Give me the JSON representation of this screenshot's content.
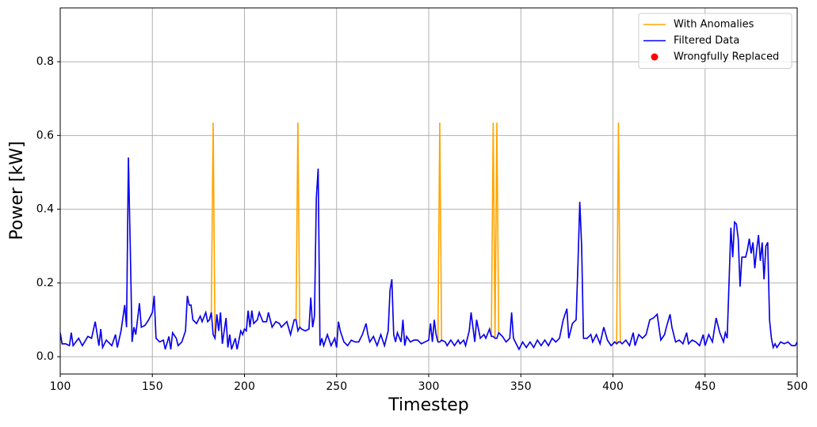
{
  "chart_data": {
    "type": "line",
    "xlabel": "Timestep",
    "ylabel": "Power [kW]",
    "xlim": [
      100,
      500
    ],
    "ylim": [
      -0.047,
      0.946
    ],
    "xticks": [
      100,
      150,
      200,
      250,
      300,
      350,
      400,
      450,
      500
    ],
    "yticks": [
      {
        "value": 0,
        "label": "0.0"
      },
      0.2,
      0.4,
      0.6,
      0.8
    ],
    "grid": true,
    "legend": "upper right",
    "x": [
      100,
      101,
      103,
      105,
      106,
      107,
      110,
      112,
      115,
      117,
      119,
      121,
      122,
      123,
      125,
      128,
      130,
      131,
      133,
      135,
      136,
      137,
      138,
      139,
      140,
      141,
      143,
      144,
      146,
      148,
      150,
      151,
      152,
      154,
      156,
      157,
      159,
      160,
      161,
      163,
      164,
      166,
      168,
      169,
      170,
      171,
      172,
      174,
      176,
      177,
      179,
      180,
      181,
      182,
      183,
      184,
      185,
      186,
      187,
      188,
      190,
      191,
      192,
      193,
      195,
      196,
      198,
      199,
      200,
      201,
      202,
      203,
      204,
      205,
      207,
      208,
      210,
      212,
      213,
      215,
      217,
      219,
      220,
      222,
      223,
      225,
      227,
      228,
      229,
      230,
      231,
      233,
      235,
      236,
      237,
      238,
      239,
      240,
      241,
      242,
      243,
      245,
      247,
      249,
      250,
      251,
      252,
      254,
      256,
      258,
      260,
      262,
      264,
      266,
      267,
      268,
      270,
      272,
      274,
      276,
      278,
      279,
      280,
      281,
      282,
      283,
      285,
      286,
      287,
      288,
      290,
      292,
      294,
      296,
      298,
      300,
      301,
      302,
      303,
      304,
      305,
      306,
      307,
      309,
      310,
      312,
      314,
      316,
      317,
      319,
      320,
      322,
      323,
      324,
      325,
      326,
      328,
      330,
      331,
      333,
      334,
      335,
      336,
      337,
      338,
      340,
      342,
      344,
      345,
      346,
      348,
      349,
      351,
      353,
      355,
      357,
      359,
      361,
      363,
      365,
      367,
      369,
      371,
      373,
      375,
      376,
      378,
      380,
      381,
      382,
      383,
      384,
      386,
      388,
      389,
      391,
      393,
      395,
      397,
      399,
      401,
      402,
      403,
      404,
      405,
      407,
      409,
      411,
      412,
      414,
      416,
      418,
      420,
      422,
      424,
      426,
      428,
      429,
      431,
      432,
      434,
      436,
      438,
      440,
      441,
      443,
      445,
      447,
      449,
      450,
      452,
      454,
      456,
      458,
      460,
      461,
      462,
      463,
      464,
      465,
      466,
      467,
      468,
      469,
      470,
      472,
      473,
      474,
      475,
      476,
      477,
      478,
      479,
      480,
      481,
      482,
      483,
      484,
      485,
      486,
      487,
      488,
      489,
      491,
      493,
      495,
      497,
      499,
      500
    ],
    "series": [
      {
        "name": "With Anomalies",
        "color": "#ffa500",
        "values": [
          0.065,
          0.035,
          0.035,
          0.03,
          0.065,
          0.03,
          0.05,
          0.03,
          0.055,
          0.05,
          0.095,
          0.03,
          0.075,
          0.025,
          0.045,
          0.03,
          0.06,
          0.025,
          0.07,
          0.14,
          0.08,
          0.54,
          0.3,
          0.04,
          0.08,
          0.06,
          0.145,
          0.08,
          0.085,
          0.1,
          0.12,
          0.165,
          0.05,
          0.04,
          0.045,
          0.02,
          0.055,
          0.02,
          0.065,
          0.05,
          0.03,
          0.04,
          0.07,
          0.165,
          0.14,
          0.14,
          0.1,
          0.09,
          0.11,
          0.095,
          0.12,
          0.095,
          0.1,
          0.12,
          0.635,
          0.05,
          0.115,
          0.07,
          0.12,
          0.035,
          0.105,
          0.025,
          0.06,
          0.02,
          0.05,
          0.02,
          0.07,
          0.06,
          0.075,
          0.07,
          0.125,
          0.08,
          0.125,
          0.09,
          0.1,
          0.12,
          0.095,
          0.095,
          0.12,
          0.08,
          0.095,
          0.09,
          0.08,
          0.09,
          0.095,
          0.06,
          0.1,
          0.1,
          0.635,
          0.08,
          0.075,
          0.07,
          0.075,
          0.16,
          0.08,
          0.11,
          0.43,
          0.51,
          0.03,
          0.05,
          0.03,
          0.06,
          0.03,
          0.05,
          0.025,
          0.095,
          0.07,
          0.04,
          0.03,
          0.045,
          0.04,
          0.04,
          0.06,
          0.09,
          0.06,
          0.04,
          0.055,
          0.03,
          0.06,
          0.03,
          0.07,
          0.18,
          0.21,
          0.06,
          0.04,
          0.065,
          0.04,
          0.1,
          0.03,
          0.055,
          0.04,
          0.045,
          0.045,
          0.035,
          0.04,
          0.045,
          0.09,
          0.04,
          0.1,
          0.06,
          0.04,
          0.635,
          0.045,
          0.04,
          0.03,
          0.045,
          0.03,
          0.045,
          0.035,
          0.045,
          0.03,
          0.07,
          0.12,
          0.08,
          0.04,
          0.1,
          0.05,
          0.06,
          0.05,
          0.075,
          0.055,
          0.635,
          0.05,
          0.635,
          0.065,
          0.055,
          0.04,
          0.05,
          0.12,
          0.05,
          0.03,
          0.02,
          0.04,
          0.025,
          0.04,
          0.025,
          0.045,
          0.03,
          0.045,
          0.03,
          0.05,
          0.04,
          0.05,
          0.1,
          0.13,
          0.05,
          0.09,
          0.1,
          0.25,
          0.42,
          0.3,
          0.05,
          0.05,
          0.06,
          0.04,
          0.06,
          0.035,
          0.08,
          0.045,
          0.03,
          0.04,
          0.035,
          0.635,
          0.04,
          0.035,
          0.045,
          0.03,
          0.065,
          0.03,
          0.06,
          0.05,
          0.06,
          0.1,
          0.105,
          0.115,
          0.045,
          0.06,
          0.08,
          0.115,
          0.08,
          0.04,
          0.045,
          0.035,
          0.065,
          0.035,
          0.045,
          0.04,
          0.03,
          0.06,
          0.03,
          0.06,
          0.04,
          0.105,
          0.065,
          0.04,
          0.065,
          0.05,
          0.2,
          0.35,
          0.27,
          0.365,
          0.36,
          0.32,
          0.19,
          0.27,
          0.27,
          0.29,
          0.32,
          0.28,
          0.31,
          0.24,
          0.29,
          0.33,
          0.26,
          0.31,
          0.21,
          0.3,
          0.31,
          0.1,
          0.05,
          0.025,
          0.035,
          0.025,
          0.04,
          0.035,
          0.04,
          0.03,
          0.03,
          0.04
        ]
      },
      {
        "name": "Filtered Data",
        "color": "#0000ff",
        "values": [
          0.065,
          0.035,
          0.035,
          0.03,
          0.065,
          0.03,
          0.05,
          0.03,
          0.055,
          0.05,
          0.095,
          0.03,
          0.075,
          0.025,
          0.045,
          0.03,
          0.06,
          0.025,
          0.07,
          0.14,
          0.08,
          0.54,
          0.3,
          0.04,
          0.08,
          0.06,
          0.145,
          0.08,
          0.085,
          0.1,
          0.12,
          0.165,
          0.05,
          0.04,
          0.045,
          0.02,
          0.055,
          0.02,
          0.065,
          0.05,
          0.03,
          0.04,
          0.07,
          0.165,
          0.14,
          0.14,
          0.1,
          0.09,
          0.11,
          0.095,
          0.12,
          0.095,
          0.1,
          0.12,
          0.06,
          0.05,
          0.115,
          0.07,
          0.12,
          0.035,
          0.105,
          0.025,
          0.06,
          0.02,
          0.05,
          0.02,
          0.07,
          0.06,
          0.075,
          0.07,
          0.125,
          0.08,
          0.125,
          0.09,
          0.1,
          0.12,
          0.095,
          0.095,
          0.12,
          0.08,
          0.095,
          0.09,
          0.08,
          0.09,
          0.095,
          0.06,
          0.1,
          0.1,
          0.07,
          0.08,
          0.075,
          0.07,
          0.075,
          0.16,
          0.08,
          0.11,
          0.43,
          0.51,
          0.03,
          0.05,
          0.03,
          0.06,
          0.03,
          0.05,
          0.025,
          0.095,
          0.07,
          0.04,
          0.03,
          0.045,
          0.04,
          0.04,
          0.06,
          0.09,
          0.06,
          0.04,
          0.055,
          0.03,
          0.06,
          0.03,
          0.07,
          0.18,
          0.21,
          0.06,
          0.04,
          0.065,
          0.04,
          0.1,
          0.03,
          0.055,
          0.04,
          0.045,
          0.045,
          0.035,
          0.04,
          0.045,
          0.09,
          0.04,
          0.1,
          0.06,
          0.04,
          0.04,
          0.045,
          0.04,
          0.03,
          0.045,
          0.03,
          0.045,
          0.035,
          0.045,
          0.03,
          0.07,
          0.12,
          0.08,
          0.04,
          0.1,
          0.05,
          0.06,
          0.05,
          0.075,
          0.055,
          0.055,
          0.05,
          0.05,
          0.065,
          0.055,
          0.04,
          0.05,
          0.12,
          0.05,
          0.03,
          0.02,
          0.04,
          0.025,
          0.04,
          0.025,
          0.045,
          0.03,
          0.045,
          0.03,
          0.05,
          0.04,
          0.05,
          0.1,
          0.13,
          0.05,
          0.09,
          0.1,
          0.25,
          0.42,
          0.3,
          0.05,
          0.05,
          0.06,
          0.04,
          0.06,
          0.035,
          0.08,
          0.045,
          0.03,
          0.04,
          0.035,
          0.04,
          0.04,
          0.035,
          0.045,
          0.03,
          0.065,
          0.03,
          0.06,
          0.05,
          0.06,
          0.1,
          0.105,
          0.115,
          0.045,
          0.06,
          0.08,
          0.115,
          0.08,
          0.04,
          0.045,
          0.035,
          0.065,
          0.035,
          0.045,
          0.04,
          0.03,
          0.06,
          0.03,
          0.06,
          0.04,
          0.105,
          0.065,
          0.04,
          0.065,
          0.05,
          0.2,
          0.35,
          0.27,
          0.365,
          0.36,
          0.32,
          0.19,
          0.27,
          0.27,
          0.29,
          0.32,
          0.28,
          0.31,
          0.24,
          0.29,
          0.33,
          0.26,
          0.31,
          0.21,
          0.3,
          0.31,
          0.1,
          0.05,
          0.025,
          0.035,
          0.025,
          0.04,
          0.035,
          0.04,
          0.03,
          0.03,
          0.04
        ]
      },
      {
        "name": "Wrongfully Replaced",
        "color": "#ff0000",
        "type": "scatter",
        "x": [],
        "values": []
      }
    ]
  }
}
